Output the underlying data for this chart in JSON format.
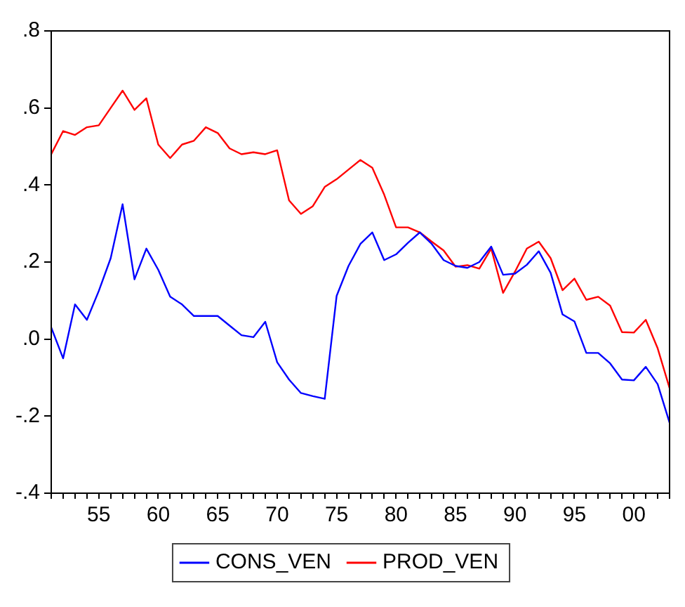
{
  "chart_data": {
    "type": "line",
    "x": [
      1951,
      1952,
      1953,
      1954,
      1955,
      1956,
      1957,
      1958,
      1959,
      1960,
      1961,
      1962,
      1963,
      1964,
      1965,
      1966,
      1967,
      1968,
      1969,
      1970,
      1971,
      1972,
      1973,
      1974,
      1975,
      1976,
      1977,
      1978,
      1979,
      1980,
      1981,
      1982,
      1983,
      1984,
      1985,
      1986,
      1987,
      1988,
      1989,
      1990,
      1991,
      1992,
      1993,
      1994,
      1995,
      1996,
      1997,
      1998,
      1999,
      2000,
      2001,
      2002,
      2003
    ],
    "series": [
      {
        "name": "CONS_VEN",
        "color": "#0000ff",
        "values": [
          0.03,
          -0.05,
          0.09,
          0.05,
          0.125,
          0.21,
          0.35,
          0.155,
          0.235,
          0.18,
          0.11,
          0.09,
          0.06,
          0.06,
          0.06,
          0.035,
          0.01,
          0.005,
          0.045,
          -0.06,
          -0.105,
          -0.14,
          -0.148,
          -0.155,
          0.112,
          0.19,
          0.247,
          0.277,
          0.205,
          0.22,
          0.25,
          0.277,
          0.247,
          0.205,
          0.19,
          0.185,
          0.2,
          0.24,
          0.167,
          0.17,
          0.193,
          0.228,
          0.172,
          0.064,
          0.046,
          -0.036,
          -0.036,
          -0.063,
          -0.105,
          -0.107,
          -0.072,
          -0.117,
          -0.217
        ]
      },
      {
        "name": "PROD_VEN",
        "color": "#ff0000",
        "values": [
          0.48,
          0.54,
          0.53,
          0.55,
          0.555,
          0.6,
          0.645,
          0.595,
          0.625,
          0.505,
          0.47,
          0.505,
          0.515,
          0.55,
          0.535,
          0.495,
          0.48,
          0.485,
          0.48,
          0.49,
          0.36,
          0.325,
          0.345,
          0.395,
          0.415,
          0.44,
          0.465,
          0.445,
          0.375,
          0.29,
          0.29,
          0.277,
          0.253,
          0.23,
          0.188,
          0.192,
          0.183,
          0.235,
          0.12,
          0.175,
          0.235,
          0.253,
          0.21,
          0.127,
          0.157,
          0.102,
          0.11,
          0.087,
          0.018,
          0.017,
          0.05,
          -0.024,
          -0.127
        ]
      }
    ],
    "xlim": [
      1951,
      2003
    ],
    "xticks": [
      {
        "value": 1951,
        "label": null
      },
      {
        "value": 1952,
        "label": null
      },
      {
        "value": 1953,
        "label": null
      },
      {
        "value": 1954,
        "label": null
      },
      {
        "value": 1955,
        "label": "55"
      },
      {
        "value": 1956,
        "label": null
      },
      {
        "value": 1957,
        "label": null
      },
      {
        "value": 1958,
        "label": null
      },
      {
        "value": 1959,
        "label": null
      },
      {
        "value": 1960,
        "label": "60"
      },
      {
        "value": 1961,
        "label": null
      },
      {
        "value": 1962,
        "label": null
      },
      {
        "value": 1963,
        "label": null
      },
      {
        "value": 1964,
        "label": null
      },
      {
        "value": 1965,
        "label": "65"
      },
      {
        "value": 1966,
        "label": null
      },
      {
        "value": 1967,
        "label": null
      },
      {
        "value": 1968,
        "label": null
      },
      {
        "value": 1969,
        "label": null
      },
      {
        "value": 1970,
        "label": "70"
      },
      {
        "value": 1971,
        "label": null
      },
      {
        "value": 1972,
        "label": null
      },
      {
        "value": 1973,
        "label": null
      },
      {
        "value": 1974,
        "label": null
      },
      {
        "value": 1975,
        "label": "75"
      },
      {
        "value": 1976,
        "label": null
      },
      {
        "value": 1977,
        "label": null
      },
      {
        "value": 1978,
        "label": null
      },
      {
        "value": 1979,
        "label": null
      },
      {
        "value": 1980,
        "label": "80"
      },
      {
        "value": 1981,
        "label": null
      },
      {
        "value": 1982,
        "label": null
      },
      {
        "value": 1983,
        "label": null
      },
      {
        "value": 1984,
        "label": null
      },
      {
        "value": 1985,
        "label": "85"
      },
      {
        "value": 1986,
        "label": null
      },
      {
        "value": 1987,
        "label": null
      },
      {
        "value": 1988,
        "label": null
      },
      {
        "value": 1989,
        "label": null
      },
      {
        "value": 1990,
        "label": "90"
      },
      {
        "value": 1991,
        "label": null
      },
      {
        "value": 1992,
        "label": null
      },
      {
        "value": 1993,
        "label": null
      },
      {
        "value": 1994,
        "label": null
      },
      {
        "value": 1995,
        "label": "95"
      },
      {
        "value": 1996,
        "label": null
      },
      {
        "value": 1997,
        "label": null
      },
      {
        "value": 1998,
        "label": null
      },
      {
        "value": 1999,
        "label": null
      },
      {
        "value": 2000,
        "label": "00"
      },
      {
        "value": 2001,
        "label": null
      },
      {
        "value": 2002,
        "label": null
      },
      {
        "value": 2003,
        "label": null
      }
    ],
    "ylim": [
      -0.4,
      0.8
    ],
    "yticks": [
      {
        "value": -0.4,
        "label": "-.4"
      },
      {
        "value": -0.2,
        "label": "-.2"
      },
      {
        "value": 0,
        "label": ".0"
      },
      {
        "value": 0.2,
        "label": ".2"
      },
      {
        "value": 0.4,
        "label": ".4"
      },
      {
        "value": 0.6,
        "label": ".6"
      },
      {
        "value": 0.8,
        "label": ".8"
      }
    ],
    "legend": "bottom",
    "marker": "none",
    "line_style": "solid"
  }
}
